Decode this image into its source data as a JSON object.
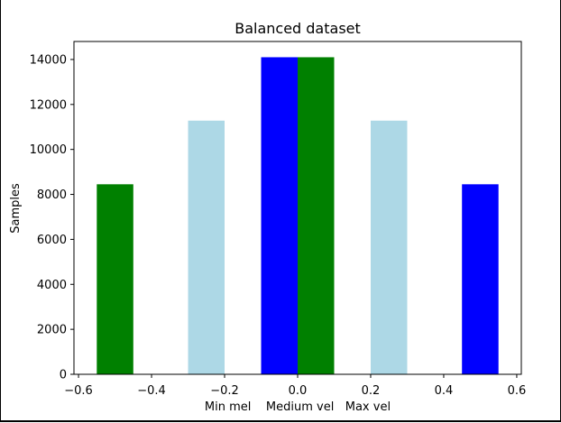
{
  "chart_data": {
    "type": "bar",
    "title": "Balanced dataset",
    "ylabel": "Samples",
    "xlim": [
      -0.6125,
      0.6125
    ],
    "ylim": [
      0,
      14800
    ],
    "xticks": [
      -0.6,
      -0.4,
      -0.2,
      0.0,
      0.2,
      0.4,
      0.6
    ],
    "xtick_labels": [
      "−0.6",
      "−0.4",
      "−0.2",
      "0.0",
      "0.2",
      "0.4",
      "0.6"
    ],
    "yticks": [
      0,
      2000,
      4000,
      6000,
      8000,
      10000,
      12000,
      14000
    ],
    "ytick_labels": [
      "0",
      "2000",
      "4000",
      "6000",
      "8000",
      "10000",
      "12000",
      "14000"
    ],
    "category_text": "Min mel    Medium vel   Max vel",
    "grid": false,
    "bar_width": 0.1,
    "bars": [
      {
        "x": -0.5,
        "value": 8450,
        "color": "#008000"
      },
      {
        "x": -0.25,
        "value": 11280,
        "color": "#add8e6"
      },
      {
        "x": -0.05,
        "value": 14100,
        "color": "#0000ff"
      },
      {
        "x": 0.05,
        "value": 14100,
        "color": "#008000"
      },
      {
        "x": 0.25,
        "value": 11280,
        "color": "#add8e6"
      },
      {
        "x": 0.5,
        "value": 8450,
        "color": "#0000ff"
      }
    ]
  }
}
